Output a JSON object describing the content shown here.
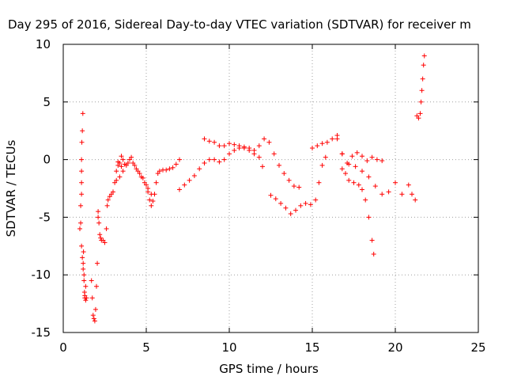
{
  "chart_data": {
    "type": "scatter",
    "title": "Day 295 of 2016, Sidereal Day-to-day VTEC variation (SDTVAR) for receiver m",
    "xlabel": "GPS time / hours",
    "ylabel": "SDTVAR / TECUs",
    "xlim": [
      0,
      25
    ],
    "ylim": [
      -15,
      10
    ],
    "x_ticks": [
      0,
      5,
      10,
      15,
      20,
      25
    ],
    "y_ticks": [
      -15,
      -10,
      -5,
      0,
      5,
      10
    ],
    "grid": true,
    "marker": "plus",
    "color": "#ff0000",
    "series": [
      {
        "x": [
          1.0,
          1.05,
          1.1,
          1.1,
          1.12,
          1.15,
          1.18,
          1.2,
          1.22,
          1.25,
          1.28,
          1.3,
          1.35,
          1.4,
          1.1,
          1.1,
          1.15,
          1.2,
          1.1,
          1.05,
          1.25,
          1.3,
          1.35
        ],
        "y": [
          -6.0,
          -4.0,
          -2.0,
          0.0,
          1.5,
          2.5,
          4.0,
          -9.0,
          -8.0,
          -10.5,
          -11.5,
          -12.0,
          -11.0,
          -12.0,
          -3.0,
          -7.5,
          -8.5,
          -9.5,
          -1.0,
          -5.5,
          -10.0,
          -11.8,
          -12.2
        ]
      },
      {
        "x": [
          1.7,
          1.75,
          1.8,
          1.85,
          1.9,
          1.95,
          2.0,
          2.05,
          2.1,
          2.1,
          2.15,
          2.2,
          2.25,
          2.3,
          2.4,
          2.5,
          2.6,
          2.65,
          2.7,
          2.8,
          2.9,
          3.0,
          3.1,
          3.2,
          3.3,
          3.4,
          3.5,
          3.6
        ],
        "y": [
          -10.5,
          -12.0,
          -13.5,
          -13.8,
          -14.0,
          -13.0,
          -11.0,
          -9.0,
          -5.0,
          -4.5,
          -5.5,
          -6.5,
          -6.8,
          -7.0,
          -7.0,
          -7.2,
          -6.0,
          -4.0,
          -3.5,
          -3.2,
          -3.0,
          -2.8,
          -2.0,
          -1.0,
          -0.5,
          -0.3,
          0.3,
          0.0
        ]
      },
      {
        "x": [
          3.2,
          3.4,
          3.6,
          3.8,
          4.0,
          4.2,
          4.4,
          4.6,
          4.8,
          5.0,
          5.1,
          5.2,
          5.3,
          5.4,
          5.5,
          5.6,
          5.7,
          5.8,
          6.0,
          6.2,
          6.4,
          6.6,
          6.8,
          7.0
        ],
        "y": [
          -1.8,
          -1.5,
          -1.0,
          -0.5,
          0.0,
          -0.3,
          -0.8,
          -1.2,
          -1.6,
          -2.2,
          -2.8,
          -3.5,
          -4.0,
          -3.6,
          -3.0,
          -2.0,
          -1.2,
          -1.0,
          -0.9,
          -0.9,
          -0.8,
          -0.7,
          -0.4,
          0.0
        ]
      },
      {
        "x": [
          3.3,
          3.5,
          3.7,
          3.9,
          4.1,
          4.3,
          4.5,
          4.7,
          4.9,
          5.1,
          5.3
        ],
        "y": [
          -0.2,
          -0.6,
          -0.4,
          -0.3,
          0.2,
          -0.5,
          -1.0,
          -1.5,
          -2.0,
          -2.5,
          -3.0
        ]
      },
      {
        "x": [
          7.0,
          7.3,
          7.6,
          7.9,
          8.2,
          8.5,
          8.8,
          9.1,
          9.4,
          9.7,
          10.0,
          10.3,
          10.6,
          10.9,
          11.2,
          11.5,
          11.8,
          12.1,
          12.4,
          12.7,
          13.0,
          13.3,
          13.6,
          13.9,
          14.2
        ],
        "y": [
          -2.6,
          -2.2,
          -1.8,
          -1.4,
          -0.8,
          -0.3,
          0.0,
          0.0,
          -0.2,
          0.0,
          0.5,
          0.8,
          1.0,
          1.1,
          1.0,
          0.8,
          1.2,
          1.8,
          1.5,
          0.5,
          -0.5,
          -1.2,
          -1.8,
          -2.3,
          -2.4
        ]
      },
      {
        "x": [
          8.5,
          8.8,
          9.1,
          9.4,
          9.7,
          10.0,
          10.3,
          10.6,
          10.9,
          11.2,
          11.5,
          11.8,
          12.0
        ],
        "y": [
          1.8,
          1.6,
          1.5,
          1.2,
          1.2,
          1.4,
          1.3,
          1.2,
          1.0,
          0.8,
          0.5,
          0.2,
          -0.6
        ]
      },
      {
        "x": [
          12.5,
          12.8,
          13.1,
          13.4,
          13.7,
          14.0,
          14.3,
          14.6,
          14.9,
          15.2,
          15.4,
          15.6,
          15.8
        ],
        "y": [
          -3.1,
          -3.4,
          -3.8,
          -4.2,
          -4.7,
          -4.4,
          -4.0,
          -3.8,
          -3.9,
          -3.5,
          -2.0,
          -0.5,
          0.2
        ]
      },
      {
        "x": [
          15.0,
          15.3,
          15.6,
          15.9,
          16.2,
          16.5,
          16.8,
          17.0,
          17.2,
          17.5,
          17.8,
          18.0,
          18.2,
          18.4,
          18.6,
          18.7
        ],
        "y": [
          1.0,
          1.2,
          1.4,
          1.5,
          1.8,
          2.1,
          0.5,
          -1.2,
          -1.8,
          -2.0,
          -2.2,
          -2.6,
          -3.5,
          -5.0,
          -7.0,
          -8.2
        ]
      },
      {
        "x": [
          16.5,
          16.8,
          17.1,
          17.4,
          17.7,
          18.0,
          18.3,
          18.6,
          18.9,
          19.2
        ],
        "y": [
          1.8,
          0.5,
          -0.3,
          0.3,
          0.6,
          0.3,
          -0.1,
          0.2,
          0.0,
          -0.1
        ]
      },
      {
        "x": [
          16.8,
          17.2,
          17.6,
          18.0,
          18.4,
          18.8,
          19.2,
          19.6,
          20.0,
          20.4,
          20.8,
          21.0,
          21.2
        ],
        "y": [
          -0.8,
          -0.4,
          -0.6,
          -1.0,
          -1.5,
          -2.3,
          -3.0,
          -2.8,
          -2.0,
          -3.0,
          -2.2,
          -3.0,
          -3.5
        ]
      },
      {
        "x": [
          21.3,
          21.4,
          21.5,
          21.55,
          21.6,
          21.65,
          21.7,
          21.75
        ],
        "y": [
          3.8,
          3.6,
          4.0,
          5.0,
          6.0,
          7.0,
          8.2,
          9.0
        ]
      }
    ]
  }
}
